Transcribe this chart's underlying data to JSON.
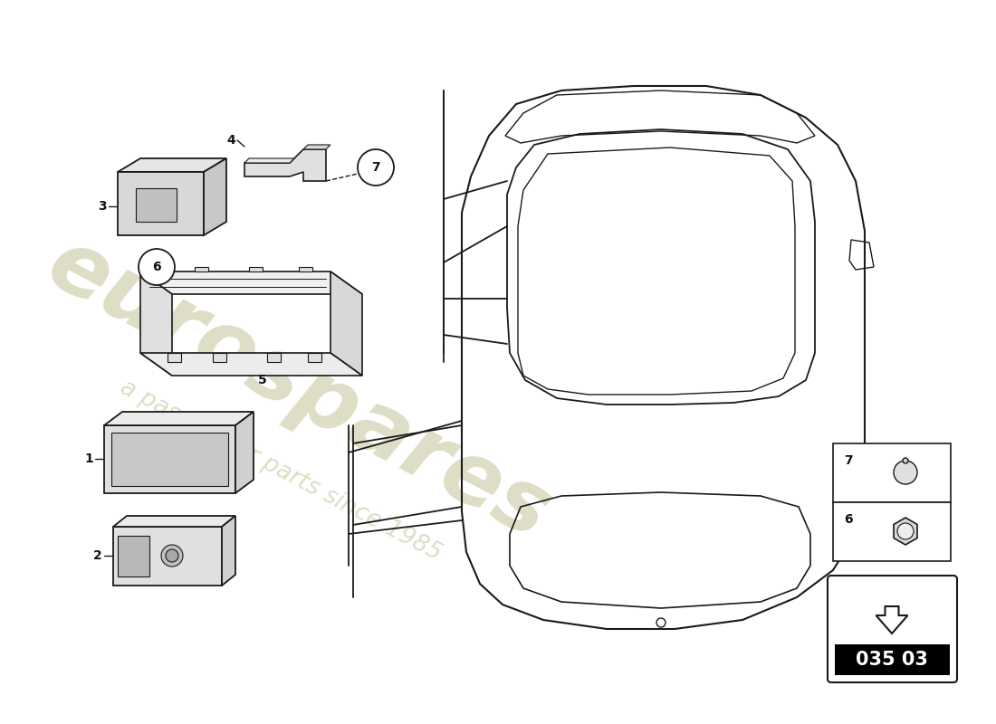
{
  "bg_color": "#ffffff",
  "diagram_code": "035 03",
  "line_color": "#1a1a1a",
  "label_color": "#111111",
  "wm_color1": "#c8c8a0",
  "wm_color2": "#c8c8a0",
  "fig_w": 11.0,
  "fig_h": 8.0,
  "dpi": 100
}
